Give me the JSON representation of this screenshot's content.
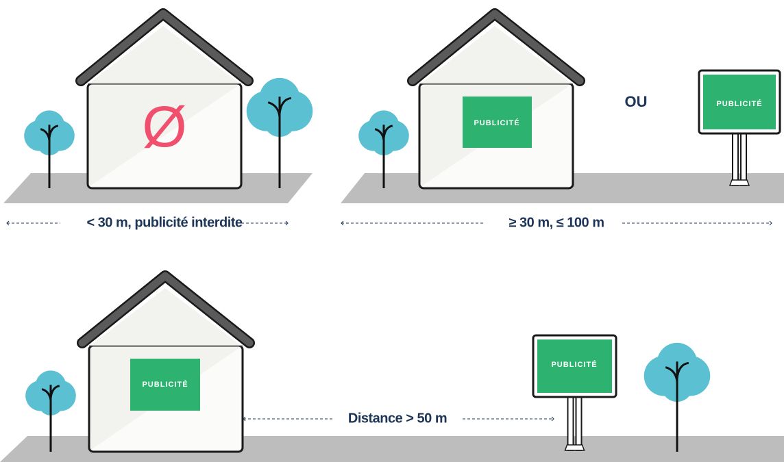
{
  "scenes": [
    {
      "house_symbol": "Ø",
      "distance_label": "< 30 m, publicité interdite"
    },
    {
      "house_sign": "PUBLICITÉ",
      "separator": "OU",
      "panel_sign": "PUBLICITÉ",
      "distance_label": "≥ 30 m,  ≤ 100 m"
    },
    {
      "house_sign": "PUBLICITÉ",
      "panel_sign": "PUBLICITÉ",
      "distance_label": "Distance > 50 m"
    }
  ]
}
